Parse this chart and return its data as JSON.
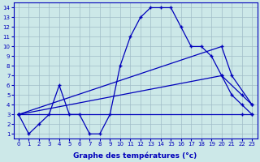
{
  "xlabel": "Graphe des températures (°c)",
  "bg_color": "#cce8e8",
  "grid_color": "#a0bcc8",
  "line_color": "#0000bb",
  "xlim": [
    -0.5,
    23.5
  ],
  "ylim": [
    0.5,
    14.5
  ],
  "xticks": [
    0,
    1,
    2,
    3,
    4,
    5,
    6,
    7,
    8,
    9,
    10,
    11,
    12,
    13,
    14,
    15,
    16,
    17,
    18,
    19,
    20,
    21,
    22,
    23
  ],
  "yticks": [
    1,
    2,
    3,
    4,
    5,
    6,
    7,
    8,
    9,
    10,
    11,
    12,
    13,
    14
  ],
  "series": [
    {
      "x": [
        0,
        1,
        2,
        3,
        4,
        5,
        6,
        7,
        8,
        9,
        10,
        11,
        12,
        13,
        14,
        15,
        16,
        17,
        18,
        19,
        20,
        21,
        22,
        23
      ],
      "y": [
        3,
        1,
        2,
        3,
        6,
        3,
        3,
        1,
        1,
        3,
        8,
        11,
        13,
        14,
        14,
        14,
        12,
        10,
        10,
        9,
        7,
        5,
        4,
        3
      ]
    },
    {
      "x": [
        0,
        20,
        21,
        23
      ],
      "y": [
        3,
        10,
        7,
        4
      ]
    },
    {
      "x": [
        0,
        20,
        22,
        23
      ],
      "y": [
        3,
        7,
        5,
        4
      ]
    },
    {
      "x": [
        0,
        22,
        23
      ],
      "y": [
        3,
        3,
        3
      ]
    }
  ]
}
